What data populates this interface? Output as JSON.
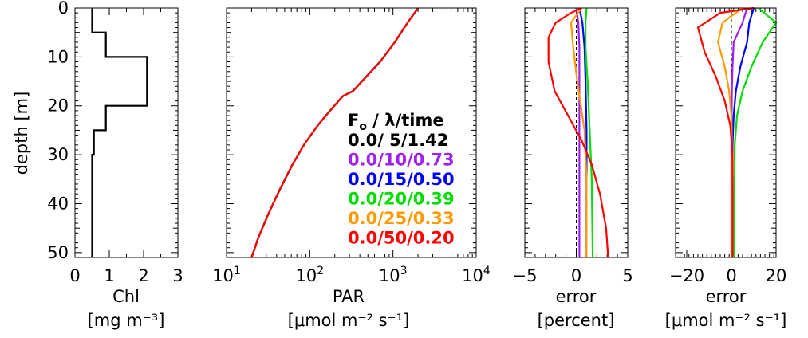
{
  "chart_data": [
    {
      "type": "line",
      "ylabel": "depth [m]",
      "xlabel_line1": "Chl",
      "xlabel_line2": "[mg m⁻³]",
      "xlim": [
        0,
        3
      ],
      "ylim": [
        51,
        0
      ],
      "xticks": [
        "0",
        "1",
        "2",
        "3"
      ],
      "yticks": [
        "0",
        "10",
        "20",
        "30",
        "40",
        "50"
      ],
      "series": [
        {
          "color": "#000000",
          "x": [
            0.5,
            0.5,
            0.9,
            0.9,
            2.1,
            2.1,
            0.9,
            0.9,
            0.55,
            0.55,
            0.5,
            0.5
          ],
          "y": [
            0,
            5,
            5,
            10,
            10,
            20,
            20,
            25,
            25,
            30,
            30,
            51
          ]
        }
      ]
    },
    {
      "type": "line",
      "xscale": "log",
      "xlabel_line1": "PAR",
      "xlabel_line2": "[μmol m⁻² s⁻¹]",
      "xlim": [
        10,
        10000
      ],
      "ylim": [
        51,
        0
      ],
      "xticks": [
        {
          "base": "10",
          "exp": "1"
        },
        {
          "base": "10",
          "exp": "2"
        },
        {
          "base": "10",
          "exp": "3"
        },
        {
          "base": "10",
          "exp": "4"
        }
      ],
      "legend": {
        "header_base": "F",
        "header_sub": "o",
        "header_rest": " / λ/time",
        "entries": [
          {
            "label": "0.0/ 5/1.42",
            "color": "#000000"
          },
          {
            "label": "0.0/10/0.73",
            "color": "#a020f0"
          },
          {
            "label": "0.0/15/0.50",
            "color": "#0000ff"
          },
          {
            "label": "0.0/20/0.39",
            "color": "#00dd00"
          },
          {
            "label": "0.0/25/0.33",
            "color": "#ff9900"
          },
          {
            "label": "0.0/50/0.20",
            "color": "#ff0000"
          }
        ]
      },
      "series": [
        {
          "color": "#00dd00",
          "x": [
            2000,
            1500,
            1050,
            700,
            480,
            330,
            250,
            175,
            125,
            85,
            62,
            44,
            32,
            24,
            20
          ],
          "y": [
            0,
            3,
            7,
            11,
            14,
            17,
            18,
            21,
            24,
            28,
            32,
            37,
            42,
            47,
            51
          ]
        },
        {
          "color": "#0000ff",
          "x": [
            2000,
            1500,
            1050,
            700,
            480,
            330,
            250,
            175,
            125,
            85,
            62,
            44,
            32,
            24,
            20
          ],
          "y": [
            0,
            3,
            7,
            11,
            14,
            17,
            18,
            21,
            24,
            28,
            32,
            37,
            42,
            47,
            51
          ]
        },
        {
          "color": "#000000",
          "x": [
            2000,
            1500,
            1050,
            700,
            480,
            330,
            250,
            175,
            125,
            85,
            62,
            44,
            32,
            24,
            20
          ],
          "y": [
            0,
            3,
            7,
            11,
            14,
            17,
            18,
            21,
            24,
            28,
            32,
            37,
            42,
            47,
            51
          ]
        },
        {
          "color": "#ff0000",
          "x": [
            2000,
            1500,
            1050,
            700,
            480,
            330,
            250,
            175,
            125,
            85,
            62,
            44,
            32,
            24,
            20
          ],
          "y": [
            0,
            3,
            7,
            11,
            14,
            17,
            18,
            21,
            24,
            28,
            32,
            37,
            42,
            47,
            51
          ]
        }
      ]
    },
    {
      "type": "line",
      "xlabel_line1": "error",
      "xlabel_line2": "[percent]",
      "xlim": [
        -5,
        5
      ],
      "ylim": [
        51,
        0
      ],
      "xticks": [
        "−5",
        "0",
        "5"
      ],
      "reference_line_x": 0,
      "series": [
        {
          "color": "#a020f0",
          "x": [
            0,
            0.2,
            0.3,
            0.3,
            0.3,
            0.3,
            0.3
          ],
          "y": [
            0,
            3,
            8,
            15,
            25,
            35,
            51
          ]
        },
        {
          "color": "#0000ff",
          "x": [
            0.3,
            0.6,
            0.8,
            0.9,
            1.0,
            1.0,
            1.0
          ],
          "y": [
            0,
            3,
            8,
            15,
            25,
            35,
            51
          ]
        },
        {
          "color": "#00dd00",
          "x": [
            1.0,
            0.9,
            0.9,
            1.1,
            1.3,
            1.5,
            1.6
          ],
          "y": [
            0,
            3,
            8,
            15,
            25,
            35,
            51
          ]
        },
        {
          "color": "#ff9900",
          "x": [
            0.5,
            -0.5,
            -0.3,
            0.1,
            0.8,
            1.0,
            1.0
          ],
          "y": [
            0,
            3,
            8,
            15,
            25,
            35,
            51
          ]
        },
        {
          "color": "#ff0000",
          "x": [
            0.5,
            -0.5,
            -2.0,
            -2.7,
            -2.7,
            -2.1,
            -0.8,
            0.5,
            1.5,
            2.3,
            2.9,
            3.1
          ],
          "y": [
            0,
            1,
            3,
            6,
            11,
            17,
            22,
            27,
            32,
            38,
            45,
            51
          ]
        }
      ]
    },
    {
      "type": "line",
      "xlabel_line1": "error",
      "xlabel_line2": "[μmol m⁻² s⁻¹]",
      "xlim": [
        -25,
        20
      ],
      "ylim": [
        51,
        0
      ],
      "xticks": [
        "−20",
        "0",
        "20"
      ],
      "xtick_values": [
        -20,
        0,
        20
      ],
      "reference_line_x": 0,
      "series": [
        {
          "color": "#00dd00",
          "x": [
            12,
            20,
            14,
            9,
            5,
            2.5,
            1.5,
            1
          ],
          "y": [
            0,
            3,
            7,
            12,
            17,
            22,
            28,
            51
          ]
        },
        {
          "color": "#0000ff",
          "x": [
            10,
            8,
            7,
            4,
            2,
            1,
            0.5,
            0.5
          ],
          "y": [
            0,
            3,
            7,
            12,
            17,
            22,
            28,
            51
          ]
        },
        {
          "color": "#a020f0",
          "x": [
            7,
            5,
            1,
            0.5,
            0.2,
            0.1,
            0,
            0
          ],
          "y": [
            0,
            3,
            7,
            12,
            17,
            22,
            28,
            51
          ]
        },
        {
          "color": "#ff9900",
          "x": [
            5,
            -4,
            -6,
            -3,
            -1,
            0,
            0.2,
            0.2
          ],
          "y": [
            0,
            3,
            7,
            12,
            17,
            22,
            28,
            51
          ]
        },
        {
          "color": "#ff0000",
          "x": [
            10,
            -5,
            -15,
            -12,
            -7,
            -3,
            -0.5,
            0.5,
            0.5
          ],
          "y": [
            0,
            1,
            4,
            9,
            14,
            19,
            24,
            30,
            51
          ]
        }
      ]
    }
  ]
}
